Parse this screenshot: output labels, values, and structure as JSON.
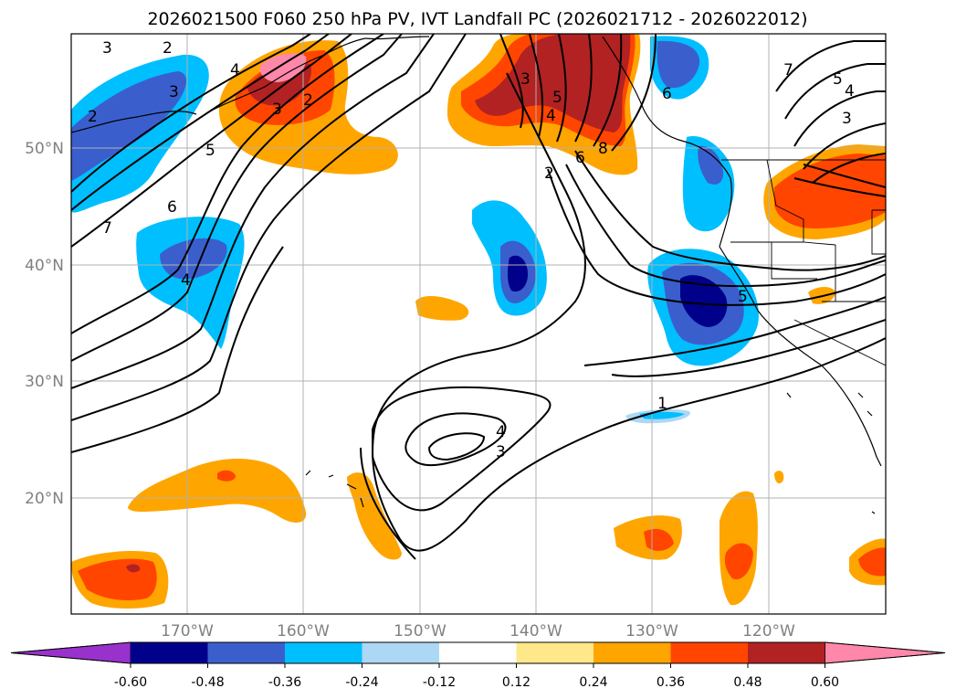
{
  "title": "2026021500 F060 250 hPa PV, IVT Landfall PC (2026021712 - 2026022012)",
  "colors": {
    "purple": "#9932cc",
    "navy": "#00008b",
    "royal_blue": "#3a5fcd",
    "deep_sky_blue": "#00bfff",
    "light_blue": "#add8f5",
    "white": "#ffffff",
    "light_yellow": "#ffe88a",
    "orange": "#ffa500",
    "orange_red": "#ff4500",
    "firebrick": "#b22222",
    "hot_pink": "#ff88aa"
  },
  "axes": {
    "lon_ticks": [
      "170°W",
      "160°W",
      "150°W",
      "140°W",
      "130°W",
      "120°W"
    ],
    "lat_ticks": [
      "50°N",
      "40°N",
      "30°N",
      "20°N"
    ]
  },
  "colorbar": {
    "ticks": [
      "-0.60",
      "-0.48",
      "-0.36",
      "-0.24",
      "-0.12",
      "0.12",
      "0.24",
      "0.36",
      "0.48",
      "0.60"
    ],
    "segment_colors": [
      "#00008b",
      "#3a5fcd",
      "#00bfff",
      "#add8f5",
      "#ffffff",
      "#ffe88a",
      "#ffa500",
      "#ff4500",
      "#b22222"
    ],
    "extend_min_color": "#9932cc",
    "extend_max_color": "#ff88aa"
  },
  "contour_labels": [
    "2",
    "3",
    "4",
    "3",
    "2",
    "7",
    "5",
    "6",
    "4",
    "3",
    "2",
    "5",
    "4",
    "3",
    "8",
    "6",
    "2",
    "6",
    "7",
    "5",
    "4",
    "3",
    "1",
    "4",
    "3",
    "5"
  ]
}
